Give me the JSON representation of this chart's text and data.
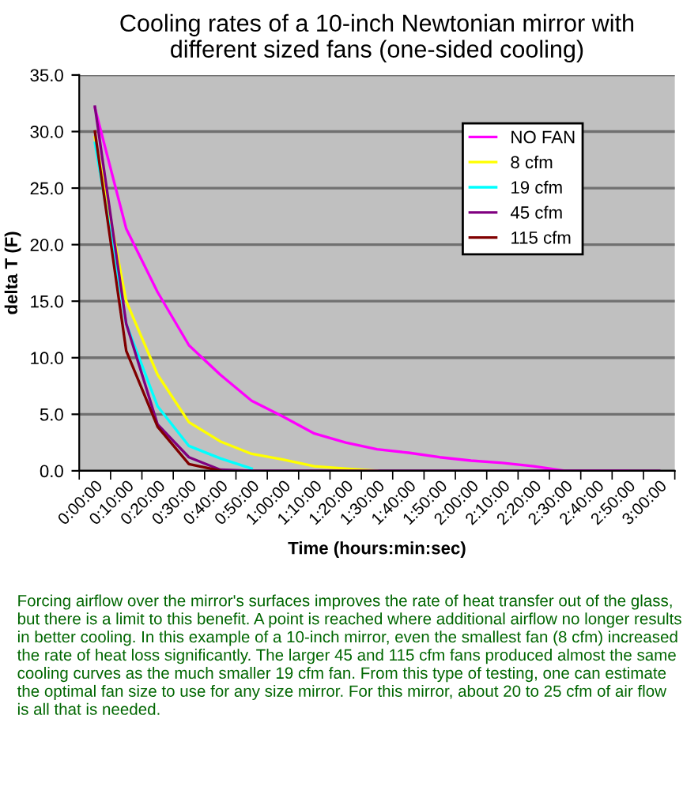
{
  "chart_data": {
    "type": "line",
    "title": "Cooling rates of a 10-inch Newtonian mirror with\ndifferent sized fans (one-sided cooling)",
    "xlabel": "Time (hours:min:sec)",
    "ylabel": "delta T (F)",
    "categories": [
      "0:00:00",
      "0:10:00",
      "0:20:00",
      "0:30:00",
      "0:40:00",
      "0:50:00",
      "1:00:00",
      "1:10:00",
      "1:20:00",
      "1:30:00",
      "1:40:00",
      "1:50:00",
      "2:00:00",
      "2:10:00",
      "2:20:00",
      "2:30:00",
      "2:40:00",
      "2:50:00",
      "3:00:00"
    ],
    "series": [
      {
        "name": "NO FAN",
        "color": "#ff00ff",
        "values": [
          32.1,
          21.4,
          15.8,
          11.1,
          8.5,
          6.2,
          4.8,
          3.3,
          2.5,
          1.9,
          1.6,
          1.2,
          0.9,
          0.7,
          0.4,
          0.0,
          0.0,
          0.0,
          null
        ]
      },
      {
        "name": "8 cfm",
        "color": "#ffff00",
        "values": [
          29.5,
          15.0,
          8.5,
          4.3,
          2.6,
          1.5,
          1.0,
          0.4,
          0.2,
          0.0,
          null,
          null,
          null,
          null,
          null,
          null,
          null,
          null,
          null
        ]
      },
      {
        "name": "19 cfm",
        "color": "#00ffff",
        "values": [
          29.0,
          13.0,
          5.7,
          2.2,
          1.1,
          0.2,
          null,
          null,
          null,
          null,
          null,
          null,
          null,
          null,
          null,
          null,
          null,
          null,
          null
        ]
      },
      {
        "name": "45 cfm",
        "color": "#800080",
        "values": [
          32.2,
          13.0,
          4.1,
          1.2,
          0.1,
          0.0,
          0.0,
          0.0,
          0.0,
          0.0,
          0.0,
          0.0,
          0.0,
          0.0,
          0.0,
          0.0,
          0.0,
          0.0,
          0.0
        ]
      },
      {
        "name": "115 cfm",
        "color": "#800000",
        "values": [
          30.0,
          10.6,
          3.9,
          0.6,
          0.0,
          null,
          null,
          null,
          null,
          null,
          null,
          null,
          null,
          null,
          null,
          null,
          null,
          null,
          null
        ]
      }
    ],
    "ylim": [
      0,
      35
    ],
    "yticks": [
      {
        "value": 0,
        "label": "0.0"
      },
      {
        "value": 5,
        "label": "5.0"
      },
      {
        "value": 10,
        "label": "10.0"
      },
      {
        "value": 15,
        "label": "15.0"
      },
      {
        "value": 20,
        "label": "20.0"
      },
      {
        "value": 25,
        "label": "25.0"
      },
      {
        "value": 30,
        "label": "30.0"
      },
      {
        "value": 35,
        "label": "35.0"
      }
    ],
    "grid": "y",
    "legend": "top right",
    "marker": "none",
    "line_style": "solid",
    "annotations": [
      "Forcing airflow over the mirror's surfaces improves the rate of heat transfer out of the glass, but there is a limit to this benefit. A point is reached where additional airflow no longer results in better cooling. In this example of a 10-inch mirror, even the smallest fan (8 cfm) increased the rate of heat loss significantly. The larger 45 and 115 cfm fans produced almost the same cooling curves as the much smaller 19 cfm fan. From this type of testing, one can estimate the optimal fan size to use for any size mirror. For this mirror, about 20 to 25 cfm of air flow is all that is needed."
    ]
  }
}
